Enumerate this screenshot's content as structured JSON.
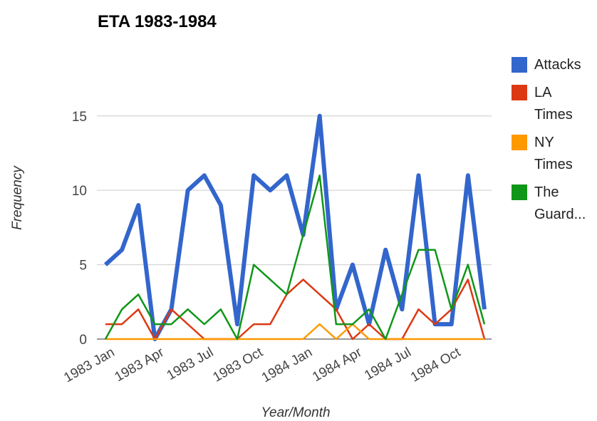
{
  "chart_data": {
    "type": "line",
    "title": "ETA 1983-1984",
    "x_label": "Year/Month",
    "y_label": "Frequency",
    "categories": [
      "1983 Jan",
      null,
      null,
      "1983 Apr",
      null,
      null,
      "1983 Jul",
      null,
      null,
      "1983 Oct",
      null,
      null,
      "1984 Jan",
      null,
      null,
      "1984 Apr",
      null,
      null,
      "1984 Jul",
      null,
      null,
      "1984 Oct",
      null,
      null
    ],
    "series": [
      {
        "name": "Attacks",
        "color": "#3366cc",
        "values": [
          5,
          6,
          9,
          0,
          2,
          10,
          11,
          9,
          1,
          11,
          10,
          11,
          7,
          15,
          2,
          5,
          1,
          6,
          2,
          11,
          1,
          1,
          11,
          2
        ]
      },
      {
        "name": "LA Times",
        "color": "#dc3912",
        "values": [
          1,
          1,
          2,
          0,
          2,
          1,
          0,
          0,
          0,
          1,
          1,
          3,
          4,
          3,
          2,
          0,
          1,
          0,
          0,
          2,
          1,
          2,
          4,
          0
        ]
      },
      {
        "name": "NY Times",
        "color": "#ff9900",
        "values": [
          0,
          0,
          0,
          0,
          0,
          0,
          0,
          0,
          0,
          0,
          0,
          0,
          0,
          1,
          0,
          1,
          0,
          0,
          0,
          0,
          0,
          0,
          0,
          0
        ]
      },
      {
        "name": "The Guard...",
        "color": "#109618",
        "values": [
          0,
          2,
          3,
          1,
          1,
          2,
          1,
          2,
          0,
          5,
          4,
          3,
          7,
          11,
          1,
          1,
          2,
          0,
          3,
          6,
          6,
          2,
          5,
          1
        ]
      }
    ],
    "ylim": [
      0,
      17
    ],
    "yticks": [
      0,
      5,
      10,
      15
    ],
    "grid": true,
    "legend": "right"
  }
}
